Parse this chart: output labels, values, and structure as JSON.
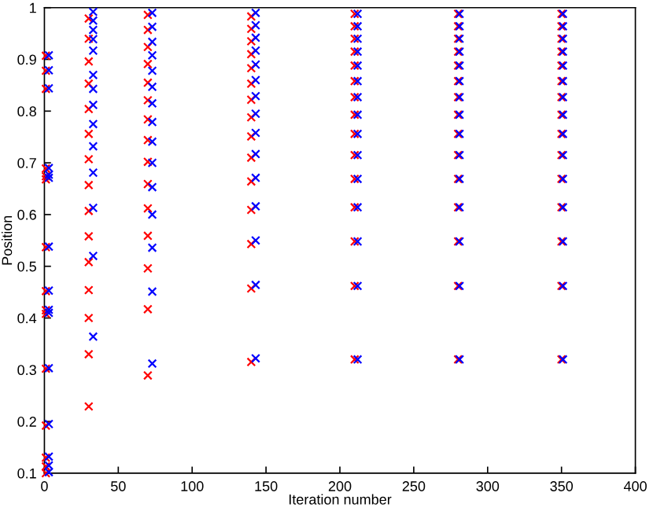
{
  "chart_data": {
    "type": "scatter",
    "xlabel": "Iteration number",
    "ylabel": "Position",
    "xlim": [
      0,
      400
    ],
    "xticks": [
      0,
      50,
      100,
      150,
      200,
      250,
      300,
      350,
      400
    ],
    "ylim": [
      0.1,
      1
    ],
    "yticks": [
      0.1,
      0.2,
      0.3,
      0.4,
      0.5,
      0.6,
      0.7,
      0.8,
      0.9,
      1
    ],
    "marker": "cross",
    "grid": false,
    "legend": false,
    "series": [
      {
        "color": "#ff0000",
        "x": [
          1,
          1,
          1,
          1,
          1,
          1,
          1,
          1,
          1,
          1,
          1,
          1,
          1,
          1,
          1,
          30,
          30,
          30,
          30,
          30,
          30,
          30,
          30,
          30,
          30,
          30,
          30,
          30,
          30,
          30,
          70,
          70,
          70,
          70,
          70,
          70,
          70,
          70,
          70,
          70,
          70,
          70,
          70,
          70,
          70,
          140,
          140,
          140,
          140,
          140,
          140,
          140,
          140,
          140,
          140,
          140,
          140,
          140,
          140,
          140,
          210,
          210,
          210,
          210,
          210,
          210,
          210,
          210,
          210,
          210,
          210,
          210,
          210,
          210,
          210,
          280,
          280,
          280,
          280,
          280,
          280,
          280,
          280,
          280,
          280,
          280,
          280,
          280,
          280,
          280,
          350,
          350,
          350,
          350,
          350,
          350,
          350,
          350,
          350,
          350,
          350,
          350,
          350,
          350,
          350
        ],
        "values": [
          0.907,
          0.878,
          0.843,
          0.689,
          0.674,
          0.668,
          0.537,
          0.452,
          0.415,
          0.408,
          0.302,
          0.192,
          0.13,
          0.113,
          0.1,
          0.979,
          0.94,
          0.896,
          0.853,
          0.804,
          0.756,
          0.707,
          0.657,
          0.607,
          0.558,
          0.508,
          0.454,
          0.4,
          0.33,
          0.229,
          0.986,
          0.957,
          0.924,
          0.891,
          0.855,
          0.821,
          0.784,
          0.744,
          0.702,
          0.659,
          0.612,
          0.559,
          0.496,
          0.417,
          0.289,
          0.983,
          0.959,
          0.935,
          0.91,
          0.883,
          0.853,
          0.822,
          0.788,
          0.751,
          0.71,
          0.664,
          0.609,
          0.543,
          0.457,
          0.315,
          0.988,
          0.964,
          0.94,
          0.915,
          0.888,
          0.858,
          0.827,
          0.793,
          0.756,
          0.715,
          0.669,
          0.614,
          0.548,
          0.462,
          0.32,
          0.988,
          0.964,
          0.94,
          0.915,
          0.888,
          0.858,
          0.827,
          0.793,
          0.756,
          0.715,
          0.669,
          0.614,
          0.548,
          0.462,
          0.32,
          0.988,
          0.964,
          0.94,
          0.915,
          0.888,
          0.858,
          0.827,
          0.793,
          0.756,
          0.715,
          0.669,
          0.614,
          0.548,
          0.462,
          0.32
        ]
      },
      {
        "color": "#0000ff",
        "x": [
          3,
          3,
          3,
          3,
          3,
          3,
          3,
          3,
          3,
          3,
          3,
          3,
          3,
          3,
          3,
          33,
          33,
          33,
          33,
          33,
          33,
          33,
          33,
          33,
          33,
          33,
          33,
          33,
          33,
          73,
          73,
          73,
          73,
          73,
          73,
          73,
          73,
          73,
          73,
          73,
          73,
          73,
          73,
          73,
          143,
          143,
          143,
          143,
          143,
          143,
          143,
          143,
          143,
          143,
          143,
          143,
          143,
          143,
          143,
          212,
          212,
          212,
          212,
          212,
          212,
          212,
          212,
          212,
          212,
          212,
          212,
          212,
          212,
          212,
          281,
          281,
          281,
          281,
          281,
          281,
          281,
          281,
          281,
          281,
          281,
          281,
          281,
          281,
          281,
          351,
          351,
          351,
          351,
          351,
          351,
          351,
          351,
          351,
          351,
          351,
          351,
          351,
          351,
          351
        ],
        "values": [
          0.908,
          0.879,
          0.844,
          0.69,
          0.677,
          0.671,
          0.538,
          0.453,
          0.416,
          0.41,
          0.303,
          0.195,
          0.132,
          0.115,
          0.102,
          0.992,
          0.975,
          0.957,
          0.939,
          0.917,
          0.87,
          0.843,
          0.812,
          0.775,
          0.732,
          0.681,
          0.613,
          0.52,
          0.364,
          0.99,
          0.963,
          0.934,
          0.908,
          0.878,
          0.847,
          0.815,
          0.779,
          0.741,
          0.7,
          0.653,
          0.6,
          0.536,
          0.451,
          0.312,
          0.99,
          0.966,
          0.942,
          0.917,
          0.89,
          0.86,
          0.829,
          0.795,
          0.758,
          0.717,
          0.671,
          0.616,
          0.55,
          0.464,
          0.322,
          0.988,
          0.964,
          0.94,
          0.915,
          0.888,
          0.858,
          0.827,
          0.793,
          0.756,
          0.715,
          0.669,
          0.614,
          0.548,
          0.462,
          0.32,
          0.988,
          0.964,
          0.94,
          0.915,
          0.888,
          0.858,
          0.827,
          0.793,
          0.756,
          0.715,
          0.669,
          0.614,
          0.548,
          0.462,
          0.32,
          0.988,
          0.964,
          0.94,
          0.915,
          0.888,
          0.858,
          0.827,
          0.793,
          0.756,
          0.715,
          0.669,
          0.614,
          0.548,
          0.462,
          0.32
        ]
      }
    ]
  }
}
